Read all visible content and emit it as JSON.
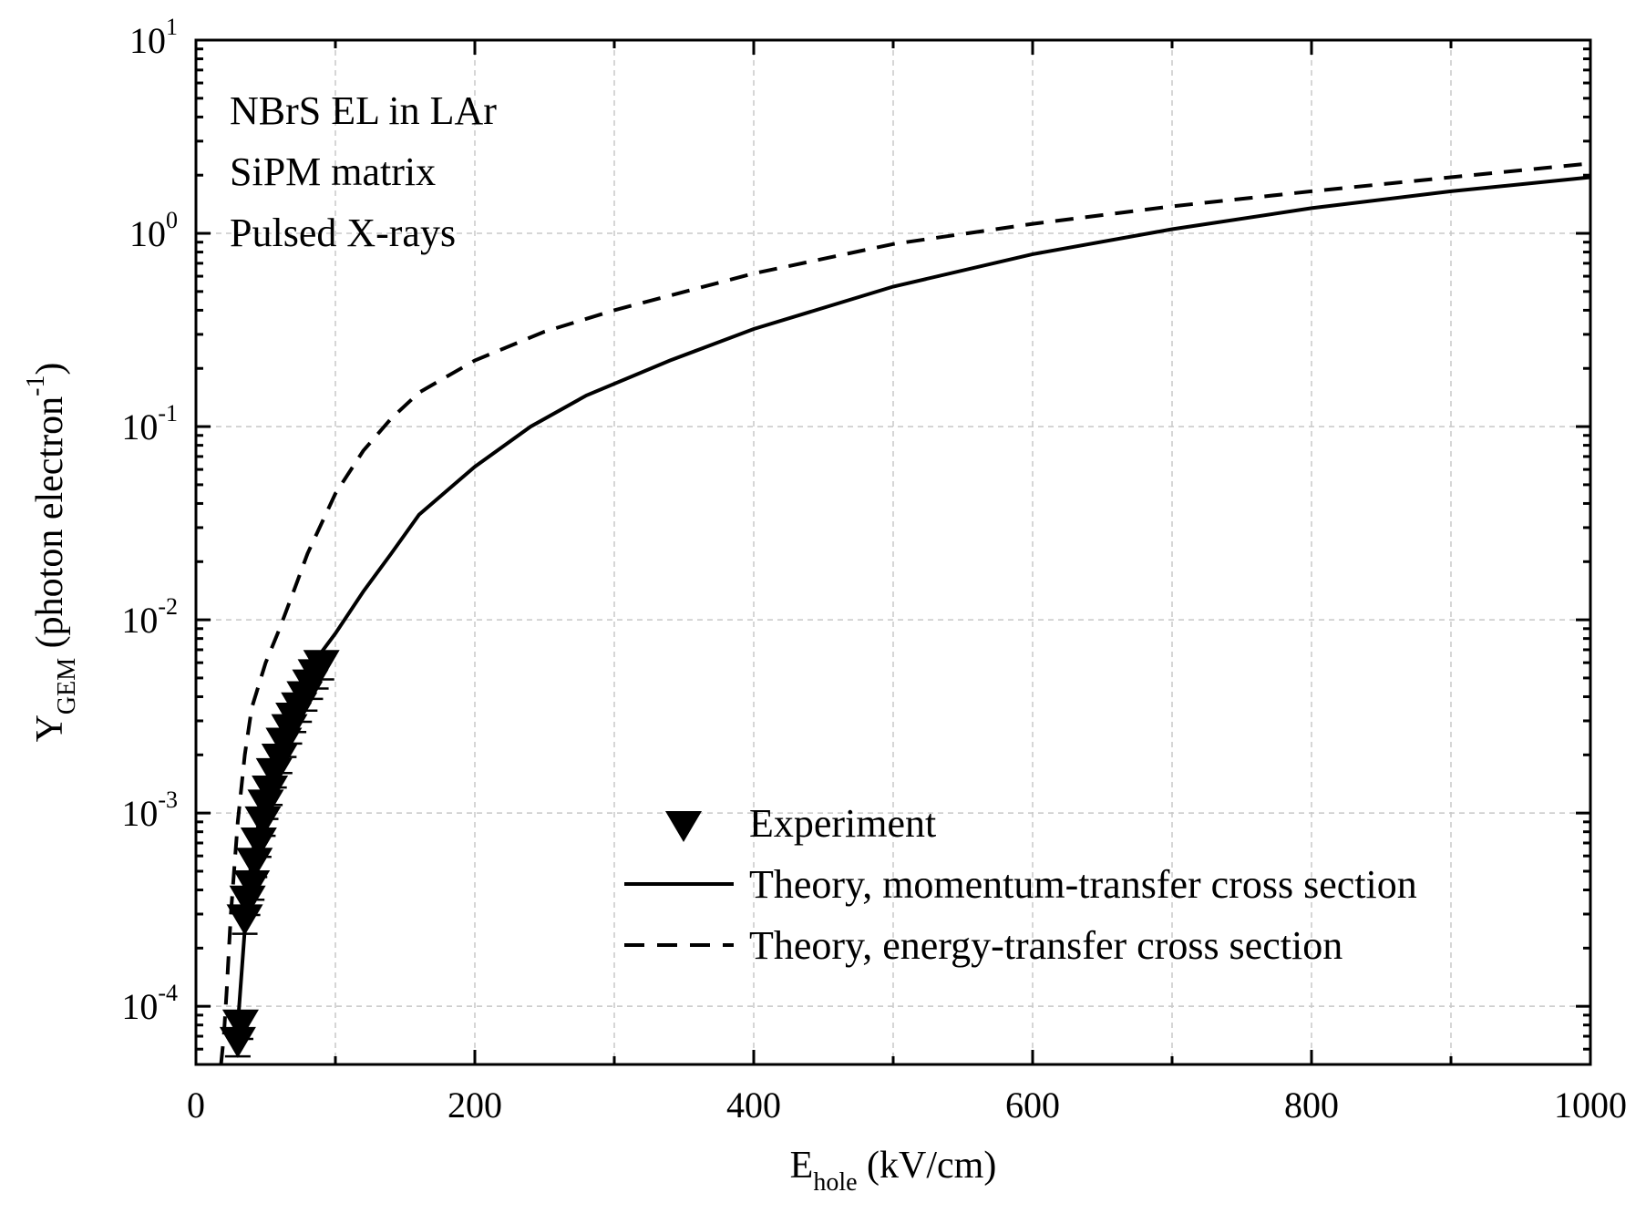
{
  "chart_data": {
    "type": "scatter",
    "title": "",
    "xlabel": {
      "main": "E",
      "sub": "hole",
      "unit": " (kV/cm)"
    },
    "ylabel": {
      "main": "Y",
      "sub": "GEM",
      "unit": " (photon electron",
      "sup": "-1",
      "close": ")"
    },
    "xlim": [
      0,
      1000
    ],
    "ylim": [
      5e-05,
      10
    ],
    "yscale": "log",
    "grid": true,
    "x_ticks": [
      "0",
      "200",
      "400",
      "600",
      "800",
      "1000"
    ],
    "y_ticks": [
      {
        "base": "10",
        "exp": "-4",
        "value": 0.0001
      },
      {
        "base": "10",
        "exp": "-3",
        "value": 0.001
      },
      {
        "base": "10",
        "exp": "-2",
        "value": 0.01
      },
      {
        "base": "10",
        "exp": "-1",
        "value": 0.1
      },
      {
        "base": "10",
        "exp": "0",
        "value": 1
      },
      {
        "base": "10",
        "exp": "1",
        "value": 10
      }
    ],
    "annotations": [
      "NBrS EL in LAr",
      "SiPM matrix",
      "Pulsed X-rays"
    ],
    "legend_position": "bottom-right",
    "series": [
      {
        "name": "Experiment",
        "style": "triangle-down",
        "x": [
          30,
          32,
          35,
          37,
          40,
          42,
          45,
          48,
          50,
          53,
          56,
          60,
          63,
          67,
          70,
          74,
          78,
          82,
          86,
          90
        ],
        "y": [
          6.5e-05,
          8e-05,
          0.00028,
          0.00035,
          0.00042,
          0.00055,
          0.0007,
          0.0009,
          0.0011,
          0.0013,
          0.0016,
          0.0019,
          0.0023,
          0.0027,
          0.0031,
          0.0035,
          0.004,
          0.0046,
          0.0052,
          0.0058
        ]
      },
      {
        "name": "Theory, momentum-transfer cross section",
        "style": "solid",
        "x": [
          30,
          35,
          40,
          50,
          60,
          70,
          80,
          90,
          100,
          120,
          140,
          160,
          200,
          240,
          280,
          340,
          400,
          500,
          600,
          700,
          800,
          900,
          1000
        ],
        "y": [
          8e-05,
          0.00025,
          0.0006,
          0.0013,
          0.0024,
          0.0038,
          0.0052,
          0.0068,
          0.0085,
          0.014,
          0.022,
          0.035,
          0.062,
          0.1,
          0.145,
          0.22,
          0.32,
          0.53,
          0.78,
          1.05,
          1.35,
          1.65,
          1.95
        ]
      },
      {
        "name": "Theory, energy-transfer cross section",
        "style": "dashed",
        "x": [
          18,
          20,
          22,
          25,
          30,
          35,
          40,
          50,
          60,
          70,
          80,
          100,
          120,
          140,
          160,
          200,
          250,
          300,
          400,
          500,
          600,
          700,
          800,
          900,
          1000
        ],
        "y": [
          5e-05,
          7e-05,
          0.00012,
          0.0003,
          0.0009,
          0.002,
          0.0035,
          0.006,
          0.009,
          0.014,
          0.022,
          0.045,
          0.075,
          0.11,
          0.15,
          0.22,
          0.31,
          0.4,
          0.62,
          0.88,
          1.12,
          1.38,
          1.65,
          1.95,
          2.3
        ]
      }
    ]
  }
}
